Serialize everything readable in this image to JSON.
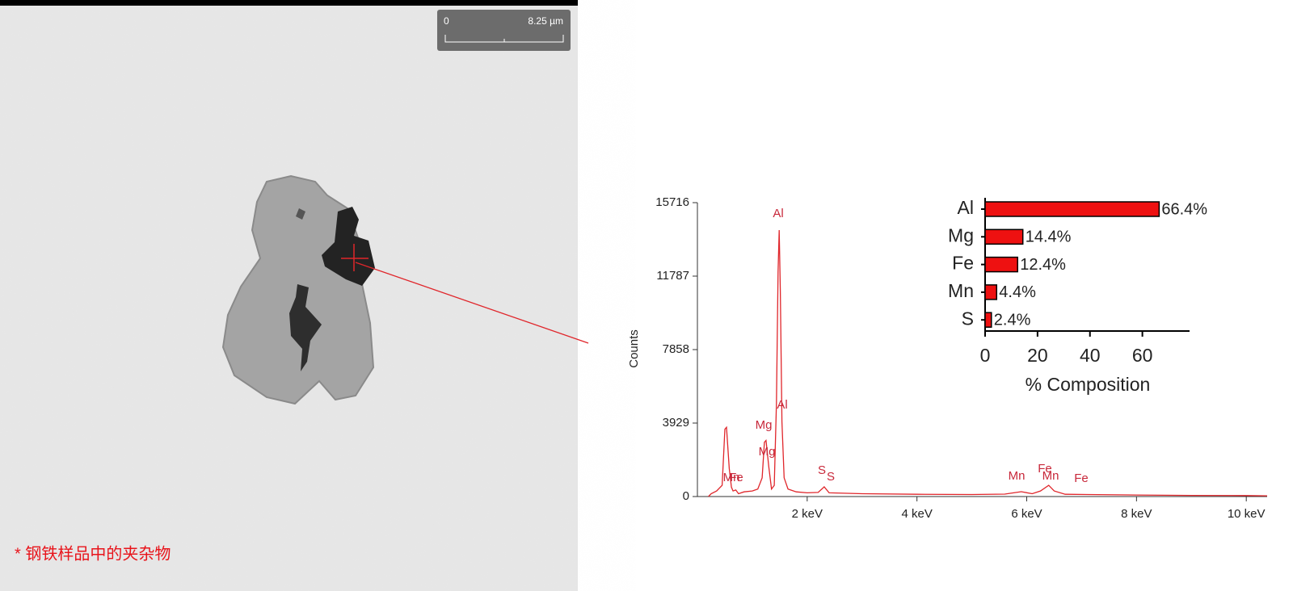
{
  "image": {
    "scale_start": "0",
    "scale_end": "8.25 µm"
  },
  "caption": "* 钢铁样品中的夹杂物",
  "chart_data": [
    {
      "type": "line",
      "ylabel": "Counts",
      "color": "#e0262b",
      "x": [
        0.2,
        0.25,
        0.35,
        0.45,
        0.5,
        0.53,
        0.58,
        0.62,
        0.65,
        0.7,
        0.75,
        0.85,
        1.0,
        1.1,
        1.18,
        1.22,
        1.25,
        1.3,
        1.35,
        1.4,
        1.44,
        1.47,
        1.49,
        1.51,
        1.54,
        1.58,
        1.65,
        1.8,
        2.0,
        2.2,
        2.31,
        2.4,
        3.0,
        4.0,
        5.0,
        5.6,
        5.9,
        6.1,
        6.25,
        6.4,
        6.5,
        6.7,
        7.1,
        8,
        9,
        10,
        10.38
      ],
      "values": [
        0,
        150,
        300,
        600,
        3600,
        3700,
        1500,
        500,
        300,
        350,
        150,
        250,
        300,
        400,
        1000,
        2900,
        3000,
        1600,
        400,
        600,
        5000,
        12000,
        14250,
        11000,
        4000,
        1000,
        400,
        250,
        200,
        220,
        520,
        200,
        150,
        120,
        110,
        130,
        260,
        150,
        300,
        600,
        300,
        120,
        110,
        80,
        60,
        50,
        40
      ],
      "xlim": [
        0,
        10.38
      ],
      "xticks": [
        {
          "value": 2,
          "label": "2 keV"
        },
        {
          "value": 4,
          "label": "4 keV"
        },
        {
          "value": 6,
          "label": "6 keV"
        },
        {
          "value": 8,
          "label": "8 keV"
        },
        {
          "value": 10,
          "label": "10 keV"
        }
      ],
      "ylim": [
        0,
        15716
      ],
      "yticks": [
        0,
        3929,
        7858,
        11787,
        15716
      ],
      "annotations": [
        "Al",
        "Al",
        "Mg",
        "Mg",
        "S",
        "S",
        "Mn",
        "Fe",
        "Mn",
        "Fe",
        "Mn",
        "Fe"
      ]
    },
    {
      "type": "bar",
      "orientation": "horizontal",
      "xlabel": "% Composition",
      "color": "#ee1111",
      "categories": [
        "Al",
        "Mg",
        "Fe",
        "Mn",
        "S"
      ],
      "values": [
        66.4,
        14.4,
        12.4,
        4.4,
        2.4
      ],
      "value_labels": [
        "66.4%",
        "14.4%",
        "12.4%",
        "4.4%",
        "2.4%"
      ],
      "xlim": [
        0,
        78
      ],
      "xticks": [
        0,
        20,
        40,
        60
      ]
    }
  ]
}
